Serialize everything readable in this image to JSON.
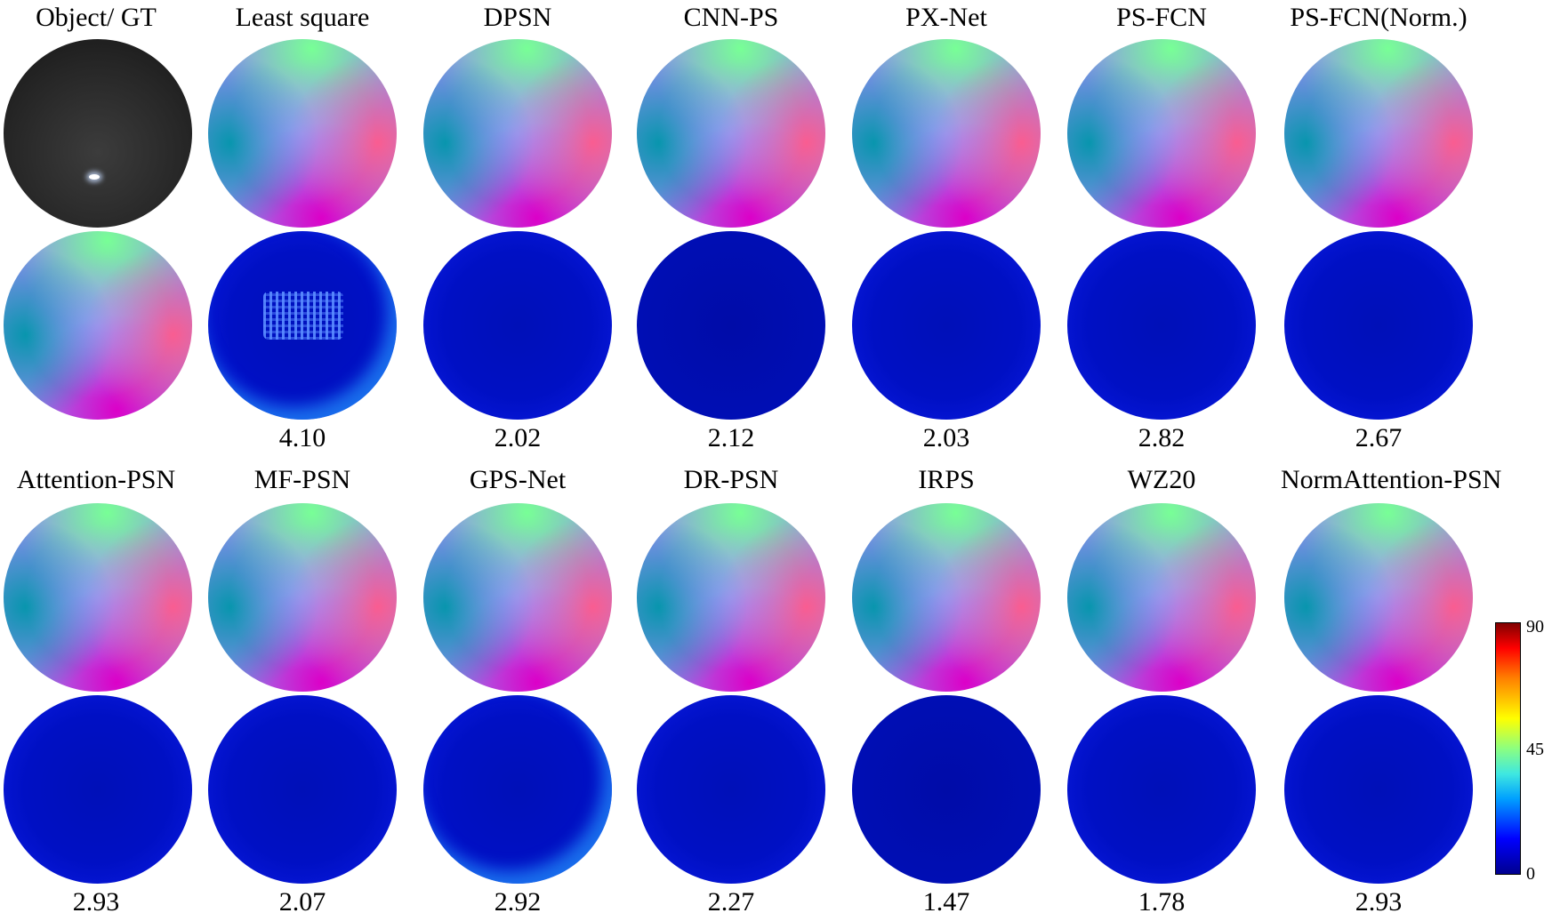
{
  "rows": [
    {
      "labels": [
        "Object/ GT",
        "Least square",
        "DPSN",
        "CNN-PS",
        "PX-Net",
        "PS-FCN",
        "PS-FCN(Norm.)"
      ],
      "errors": [
        "",
        "4.10",
        "2.02",
        "2.12",
        "2.03",
        "2.82",
        "2.67"
      ]
    },
    {
      "labels": [
        "Attention-PSN",
        "MF-PSN",
        "GPS-Net",
        "DR-PSN",
        "IRPS",
        "WZ20",
        "NormAttention-PSN"
      ],
      "errors": [
        "2.93",
        "2.07",
        "2.92",
        "2.27",
        "1.47",
        "1.78",
        "2.93"
      ]
    }
  ],
  "colorbar": {
    "ticks": [
      "90",
      "45",
      "0"
    ],
    "colors": [
      "#00008f",
      "#0000ff",
      "#00a0ff",
      "#8cff80",
      "#ffff00",
      "#ff0000",
      "#800000"
    ]
  }
}
